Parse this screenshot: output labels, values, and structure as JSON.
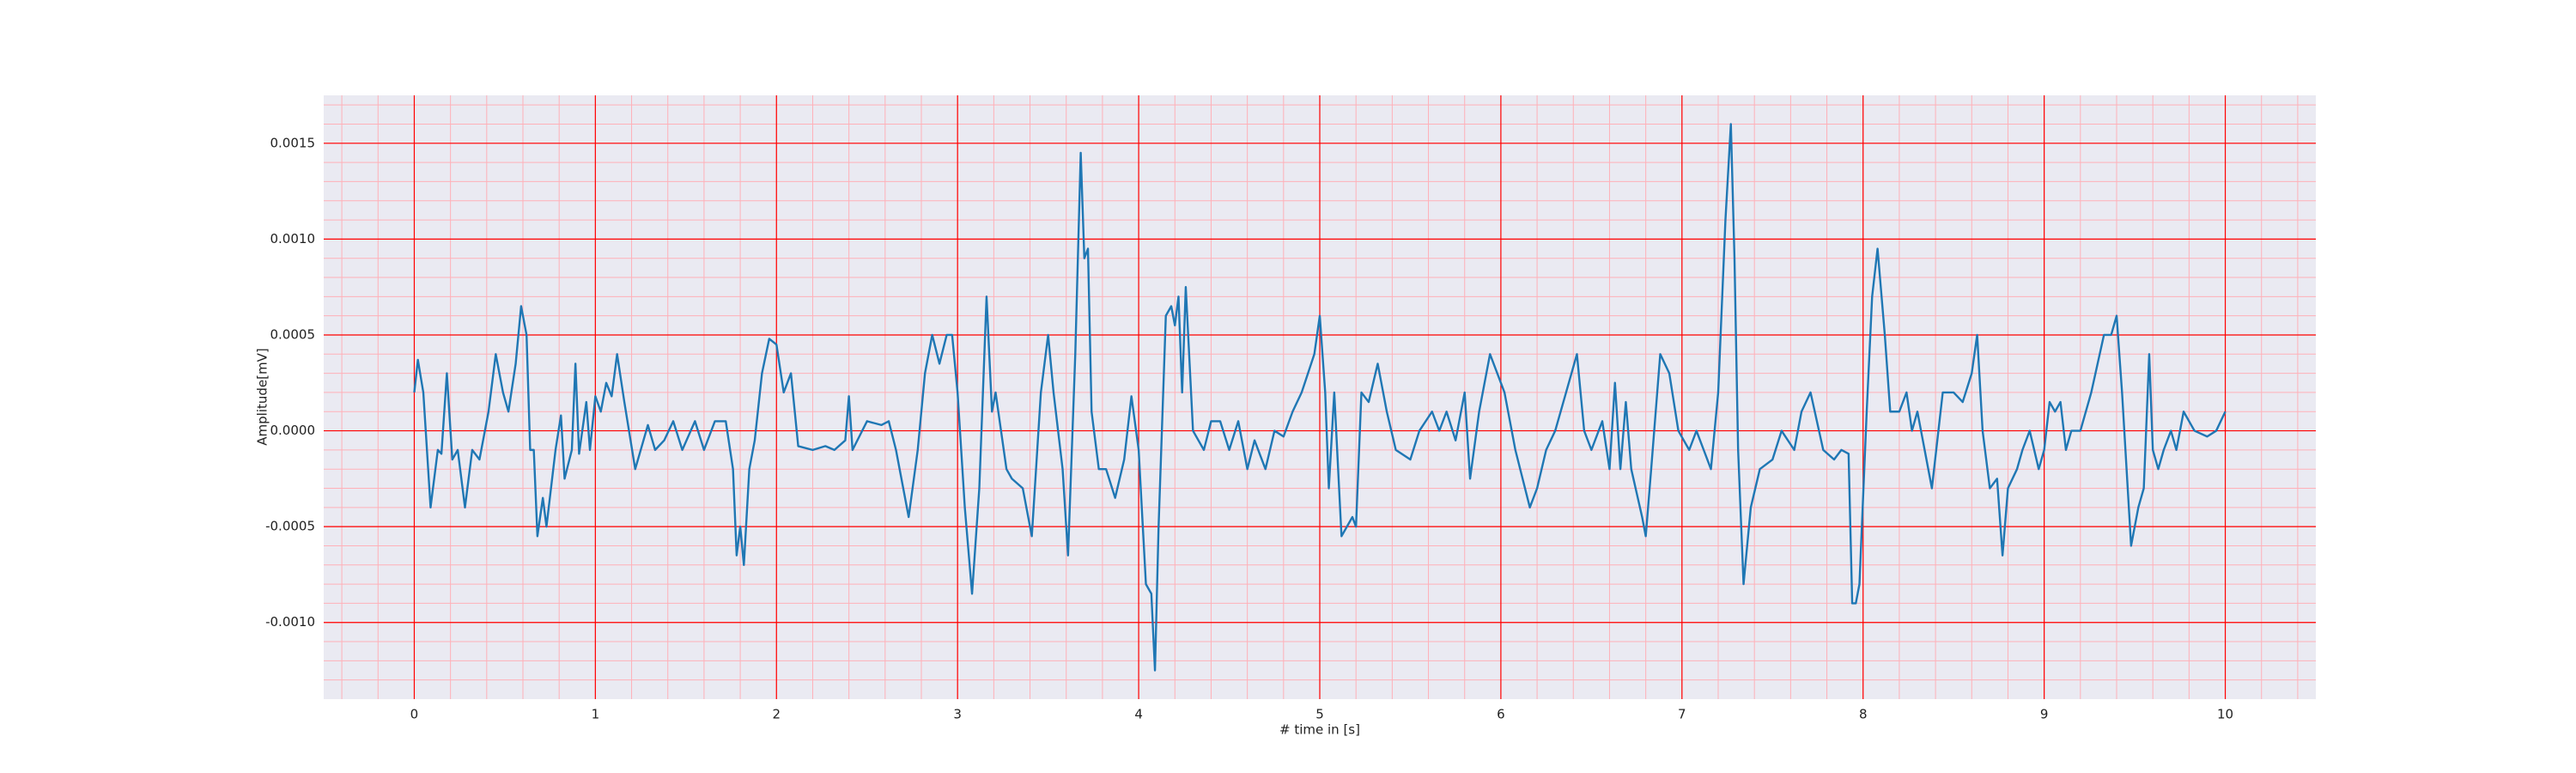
{
  "chart_data": {
    "type": "line",
    "xlabel": "# time in [s]",
    "ylabel": "Amplitude[mV]",
    "x": [
      0,
      0.02,
      0.05,
      0.09,
      0.13,
      0.15,
      0.18,
      0.21,
      0.24,
      0.28,
      0.32,
      0.36,
      0.41,
      0.45,
      0.49,
      0.52,
      0.56,
      0.59,
      0.62,
      0.64,
      0.66,
      0.68,
      0.71,
      0.73,
      0.78,
      0.81,
      0.83,
      0.87,
      0.89,
      0.91,
      0.95,
      0.97,
      1.0,
      1.03,
      1.06,
      1.09,
      1.12,
      1.16,
      1.22,
      1.29,
      1.33,
      1.38,
      1.43,
      1.48,
      1.55,
      1.6,
      1.66,
      1.72,
      1.76,
      1.78,
      1.8,
      1.82,
      1.85,
      1.88,
      1.92,
      1.96,
      2.0,
      2.04,
      2.08,
      2.12,
      2.2,
      2.27,
      2.32,
      2.38,
      2.4,
      2.42,
      2.5,
      2.58,
      2.62,
      2.66,
      2.73,
      2.78,
      2.82,
      2.86,
      2.9,
      2.94,
      2.97,
      3.0,
      3.04,
      3.08,
      3.12,
      3.16,
      3.19,
      3.21,
      3.27,
      3.3,
      3.36,
      3.41,
      3.46,
      3.5,
      3.53,
      3.58,
      3.61,
      3.65,
      3.68,
      3.7,
      3.72,
      3.74,
      3.78,
      3.82,
      3.87,
      3.92,
      3.96,
      4.0,
      4.04,
      4.07,
      4.09,
      4.11,
      4.15,
      4.18,
      4.2,
      4.22,
      4.24,
      4.26,
      4.3,
      4.36,
      4.4,
      4.45,
      4.5,
      4.55,
      4.6,
      4.64,
      4.7,
      4.75,
      4.8,
      4.85,
      4.9,
      4.97,
      5.0,
      5.03,
      5.05,
      5.08,
      5.12,
      5.15,
      5.18,
      5.2,
      5.23,
      5.27,
      5.32,
      5.37,
      5.42,
      5.5,
      5.55,
      5.62,
      5.66,
      5.7,
      5.75,
      5.8,
      5.83,
      5.88,
      5.94,
      5.98,
      6.02,
      6.08,
      6.16,
      6.2,
      6.25,
      6.3,
      6.36,
      6.42,
      6.46,
      6.5,
      6.56,
      6.6,
      6.63,
      6.66,
      6.69,
      6.72,
      6.78,
      6.8,
      6.83,
      6.88,
      6.93,
      6.98,
      7.04,
      7.08,
      7.12,
      7.16,
      7.2,
      7.24,
      7.27,
      7.29,
      7.31,
      7.34,
      7.38,
      7.43,
      7.5,
      7.55,
      7.62,
      7.66,
      7.71,
      7.78,
      7.84,
      7.88,
      7.92,
      7.94,
      7.96,
      7.98,
      8.02,
      8.05,
      8.08,
      8.12,
      8.15,
      8.2,
      8.24,
      8.27,
      8.3,
      8.34,
      8.38,
      8.44,
      8.5,
      8.55,
      8.6,
      8.63,
      8.66,
      8.7,
      8.74,
      8.77,
      8.8,
      8.85,
      8.88,
      8.92,
      8.97,
      9.0,
      9.03,
      9.06,
      9.09,
      9.12,
      9.15,
      9.2,
      9.26,
      9.33,
      9.37,
      9.4,
      9.43,
      9.48,
      9.52,
      9.55,
      9.58,
      9.6,
      9.63,
      9.66,
      9.7,
      9.73,
      9.77,
      9.83,
      9.9,
      9.95,
      10.0
    ],
    "series": [
      {
        "color": "#1f77b4",
        "values": [
          0.0002,
          0.00037,
          0.0002,
          -0.0004,
          -0.0001,
          -0.00012,
          0.0003,
          -0.00015,
          -0.0001,
          -0.0004,
          -0.0001,
          -0.00015,
          0.0001,
          0.0004,
          0.0002,
          0.0001,
          0.00035,
          0.00065,
          0.0005,
          -0.0001,
          -0.0001,
          -0.00055,
          -0.00035,
          -0.0005,
          -0.0001,
          8e-05,
          -0.00025,
          -0.0001,
          0.00035,
          -0.00012,
          0.00015,
          -0.0001,
          0.00018,
          0.0001,
          0.00025,
          0.00018,
          0.0004,
          0.00015,
          -0.0002,
          3e-05,
          -0.0001,
          -5e-05,
          5e-05,
          -0.0001,
          5e-05,
          -0.0001,
          5e-05,
          5e-05,
          -0.0002,
          -0.00065,
          -0.0005,
          -0.0007,
          -0.0002,
          -5e-05,
          0.0003,
          0.00048,
          0.00045,
          0.0002,
          0.0003,
          -8e-05,
          -0.0001,
          -8e-05,
          -0.0001,
          -5e-05,
          0.00018,
          -0.0001,
          5e-05,
          3e-05,
          5e-05,
          -0.0001,
          -0.00045,
          -0.0001,
          0.0003,
          0.0005,
          0.00035,
          0.0005,
          0.0005,
          0.0002,
          -0.0004,
          -0.00085,
          -0.0003,
          0.0007,
          0.0001,
          0.0002,
          -0.0002,
          -0.00025,
          -0.0003,
          -0.00055,
          0.0002,
          0.0005,
          0.0002,
          -0.0002,
          -0.00065,
          0.0004,
          0.00145,
          0.0009,
          0.00095,
          0.0001,
          -0.0002,
          -0.0002,
          -0.00035,
          -0.00015,
          0.00018,
          -0.0001,
          -0.0008,
          -0.00085,
          -0.00125,
          -0.0005,
          0.0006,
          0.00065,
          0.00055,
          0.0007,
          0.0002,
          0.00075,
          0.0,
          -0.0001,
          5e-05,
          5e-05,
          -0.0001,
          5e-05,
          -0.0002,
          -5e-05,
          -0.0002,
          0.0,
          -3e-05,
          0.0001,
          0.0002,
          0.0004,
          0.0006,
          0.0002,
          -0.0003,
          0.0002,
          -0.00055,
          -0.0005,
          -0.00045,
          -0.0005,
          0.0002,
          0.00015,
          0.00035,
          0.0001,
          -0.0001,
          -0.00015,
          0.0,
          0.0001,
          0.0,
          0.0001,
          -5e-05,
          0.0002,
          -0.00025,
          0.0001,
          0.0004,
          0.0003,
          0.0002,
          -0.0001,
          -0.0004,
          -0.0003,
          -0.0001,
          0.0,
          0.0002,
          0.0004,
          0.0,
          -0.0001,
          5e-05,
          -0.0002,
          0.00025,
          -0.0002,
          0.00015,
          -0.0002,
          -0.00045,
          -0.00055,
          -0.0002,
          0.0004,
          0.0003,
          0.0,
          -0.0001,
          0.0,
          -0.0001,
          -0.0002,
          0.0002,
          0.0011,
          0.0016,
          0.0009,
          -0.0001,
          -0.0008,
          -0.0004,
          -0.0002,
          -0.00015,
          0.0,
          -0.0001,
          0.0001,
          0.0002,
          -0.0001,
          -0.00015,
          -0.0001,
          -0.00012,
          -0.0009,
          -0.0009,
          -0.0008,
          0.0001,
          0.0007,
          0.00095,
          0.0005,
          0.0001,
          0.0001,
          0.0002,
          0.0,
          0.0001,
          -0.0001,
          -0.0003,
          0.0002,
          0.0002,
          0.00015,
          0.0003,
          0.0005,
          0.0,
          -0.0003,
          -0.00025,
          -0.00065,
          -0.0003,
          -0.0002,
          -0.0001,
          0.0,
          -0.0002,
          -0.0001,
          0.00015,
          0.0001,
          0.00015,
          -0.0001,
          0.0,
          0.0,
          0.0002,
          0.0005,
          0.0005,
          0.0006,
          0.0002,
          -0.0006,
          -0.0004,
          -0.0003,
          0.0004,
          -0.0001,
          -0.0002,
          -0.0001,
          0.0,
          -0.0001,
          0.0001,
          0.0,
          -3e-05,
          0.0,
          0.0001
        ]
      }
    ],
    "xlim": [
      -0.5,
      10.5
    ],
    "xticks": [
      0,
      1,
      2,
      3,
      4,
      5,
      6,
      7,
      8,
      9,
      10
    ],
    "ylim": [
      -0.0014,
      0.00175
    ],
    "yticks": [
      {
        "value": -0.001,
        "label": "-0.0010"
      },
      {
        "value": -0.0005,
        "label": "-0.0005"
      },
      {
        "value": 0,
        "label": "0.0000"
      },
      {
        "value": 0.0005,
        "label": "0.0005"
      },
      {
        "value": 0.001,
        "label": "0.0010"
      },
      {
        "value": 0.0015,
        "label": "0.0015"
      }
    ],
    "grid": true,
    "grid_color": "#ff0000",
    "minor_grid": true,
    "minor_grid_color": "#ffb0b8",
    "background": "#eaeaf2"
  }
}
